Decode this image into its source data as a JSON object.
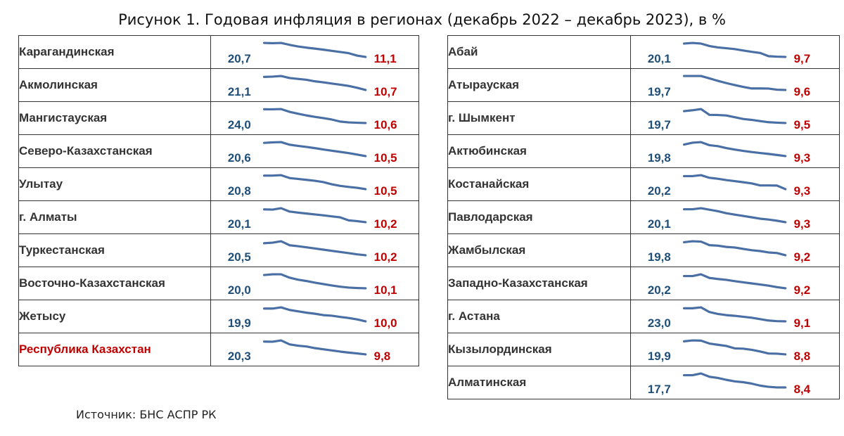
{
  "title": "Рисунок 1. Годовая инфляция в регионах (декабрь 2022 – декабрь 2023), в %",
  "source": "Источник: БНС АСПР РК",
  "colors": {
    "start_value": "#1f4e79",
    "end_value": "#c00000",
    "line": "#4a6fa5",
    "highlight_name": "#c00000"
  },
  "chart_data": {
    "type": "table",
    "columns": [
      [
        {
          "region": "Карагандинская",
          "start": "20,7",
          "end": "11,1",
          "trend": [
            20.7,
            20.5,
            20.7,
            19.4,
            18.3,
            17.5,
            16.8,
            16.1,
            15.3,
            14.5,
            13.7,
            12.0,
            11.1
          ]
        },
        {
          "region": "Акмолинская",
          "start": "21,1",
          "end": "10,7",
          "trend": [
            21.1,
            21.3,
            21.8,
            20.2,
            19.5,
            18.8,
            17.6,
            16.8,
            15.8,
            14.9,
            13.9,
            12.5,
            10.7
          ]
        },
        {
          "region": "Мангистауская",
          "start": "24,0",
          "end": "10,6",
          "trend": [
            24.0,
            23.9,
            24.2,
            21.5,
            19.7,
            18.0,
            16.6,
            15.4,
            14.0,
            12.0,
            11.2,
            10.9,
            10.6
          ]
        },
        {
          "region": "Северо-Казахстанская",
          "start": "20,6",
          "end": "10,5",
          "trend": [
            20.6,
            21.0,
            21.2,
            19.2,
            18.3,
            17.5,
            16.6,
            15.6,
            14.6,
            13.7,
            12.8,
            11.7,
            10.5
          ]
        },
        {
          "region": "Улытау",
          "start": "20,8",
          "end": "10,5",
          "trend": [
            20.8,
            20.9,
            21.2,
            19.0,
            18.3,
            17.6,
            16.9,
            15.9,
            14.2,
            13.0,
            12.2,
            11.5,
            10.5
          ]
        },
        {
          "region": "г. Алматы",
          "start": "20,1",
          "end": "10,2",
          "trend": [
            20.1,
            19.9,
            21.0,
            18.4,
            17.6,
            16.9,
            16.2,
            15.5,
            14.7,
            13.9,
            11.6,
            11.0,
            10.2
          ]
        },
        {
          "region": "Туркестанская",
          "start": "20,5",
          "end": "10,2",
          "trend": [
            20.5,
            21.0,
            22.2,
            18.8,
            18.0,
            17.0,
            16.0,
            15.0,
            14.0,
            13.0,
            12.0,
            11.0,
            10.2
          ]
        },
        {
          "region": "Восточно-Казахстанская",
          "start": "20,0",
          "end": "10,1",
          "trend": [
            20.0,
            20.5,
            20.5,
            18.0,
            16.5,
            15.5,
            14.3,
            13.2,
            12.2,
            11.3,
            10.6,
            10.3,
            10.1
          ]
        },
        {
          "region": "Жетысу",
          "start": "19,9",
          "end": "10,0",
          "trend": [
            19.9,
            19.9,
            20.8,
            18.8,
            17.8,
            16.7,
            15.9,
            14.8,
            14.4,
            13.4,
            12.6,
            11.5,
            10.0
          ]
        },
        {
          "region": "Республика Казахстан",
          "start": "20,3",
          "end": "9,8",
          "highlight": true,
          "trend": [
            20.3,
            20.2,
            21.3,
            18.1,
            17.0,
            16.3,
            15.0,
            14.0,
            13.1,
            12.1,
            11.3,
            10.6,
            9.8
          ]
        }
      ],
      [
        {
          "region": "Абай",
          "start": "20,1",
          "end": "9,7",
          "trend": [
            20.1,
            20.6,
            20.1,
            18.2,
            17.1,
            16.5,
            15.8,
            14.7,
            13.7,
            12.8,
            10.3,
            9.9,
            9.7
          ]
        },
        {
          "region": "Атырауская",
          "start": "19,7",
          "end": "9,6",
          "trend": [
            19.7,
            19.7,
            19.7,
            18.0,
            16.2,
            14.6,
            13.2,
            11.8,
            10.7,
            10.7,
            10.6,
            9.8,
            9.6
          ]
        },
        {
          "region": "г. Шымкент",
          "start": "19,7",
          "end": "9,5",
          "trend": [
            19.7,
            20.5,
            21.5,
            16.5,
            16.4,
            16.0,
            14.5,
            13.0,
            12.2,
            11.2,
            10.2,
            9.8,
            9.5
          ]
        },
        {
          "region": "Актюбинская",
          "start": "19,8",
          "end": "9,3",
          "trend": [
            19.8,
            21.4,
            22.0,
            19.2,
            18.3,
            16.6,
            15.2,
            14.0,
            13.0,
            12.1,
            11.3,
            10.3,
            9.3
          ]
        },
        {
          "region": "Костанайская",
          "start": "20,2",
          "end": "9,3",
          "trend": [
            20.2,
            20.2,
            21.0,
            18.8,
            18.0,
            16.9,
            16.0,
            15.1,
            14.1,
            12.4,
            12.4,
            12.3,
            9.3
          ]
        },
        {
          "region": "Павлодарская",
          "start": "20,1",
          "end": "9,3",
          "trend": [
            20.1,
            20.1,
            21.0,
            19.8,
            18.5,
            16.8,
            15.6,
            14.5,
            13.4,
            12.2,
            11.5,
            10.5,
            9.3
          ]
        },
        {
          "region": "Жамбылская",
          "start": "19,8",
          "end": "9,2",
          "trend": [
            19.8,
            20.6,
            20.3,
            17.4,
            17.0,
            16.0,
            15.5,
            14.4,
            13.3,
            12.6,
            11.5,
            11.0,
            9.2
          ]
        },
        {
          "region": "Западно-Казахстанская",
          "start": "20,2",
          "end": "9,2",
          "trend": [
            20.2,
            20.2,
            21.8,
            18.5,
            17.6,
            16.8,
            15.6,
            14.6,
            13.6,
            12.6,
            11.6,
            10.3,
            9.2
          ]
        },
        {
          "region": "г. Астана",
          "start": "23,0",
          "end": "9,1",
          "trend": [
            23.0,
            23.0,
            24.0,
            19.0,
            17.0,
            15.7,
            15.0,
            14.0,
            13.0,
            11.5,
            10.0,
            9.3,
            9.1
          ]
        },
        {
          "region": "Кызылординская",
          "start": "19,9",
          "end": "8,8",
          "trend": [
            19.9,
            20.7,
            20.5,
            18.0,
            17.0,
            16.0,
            13.9,
            13.7,
            12.7,
            11.3,
            9.6,
            9.4,
            8.8
          ]
        },
        {
          "region": "Алматинская",
          "start": "17,7",
          "end": "8,4",
          "trend": [
            17.7,
            17.7,
            19.0,
            16.5,
            15.6,
            14.2,
            13.0,
            12.4,
            11.3,
            9.8,
            8.9,
            8.4,
            8.4
          ]
        }
      ]
    ]
  }
}
